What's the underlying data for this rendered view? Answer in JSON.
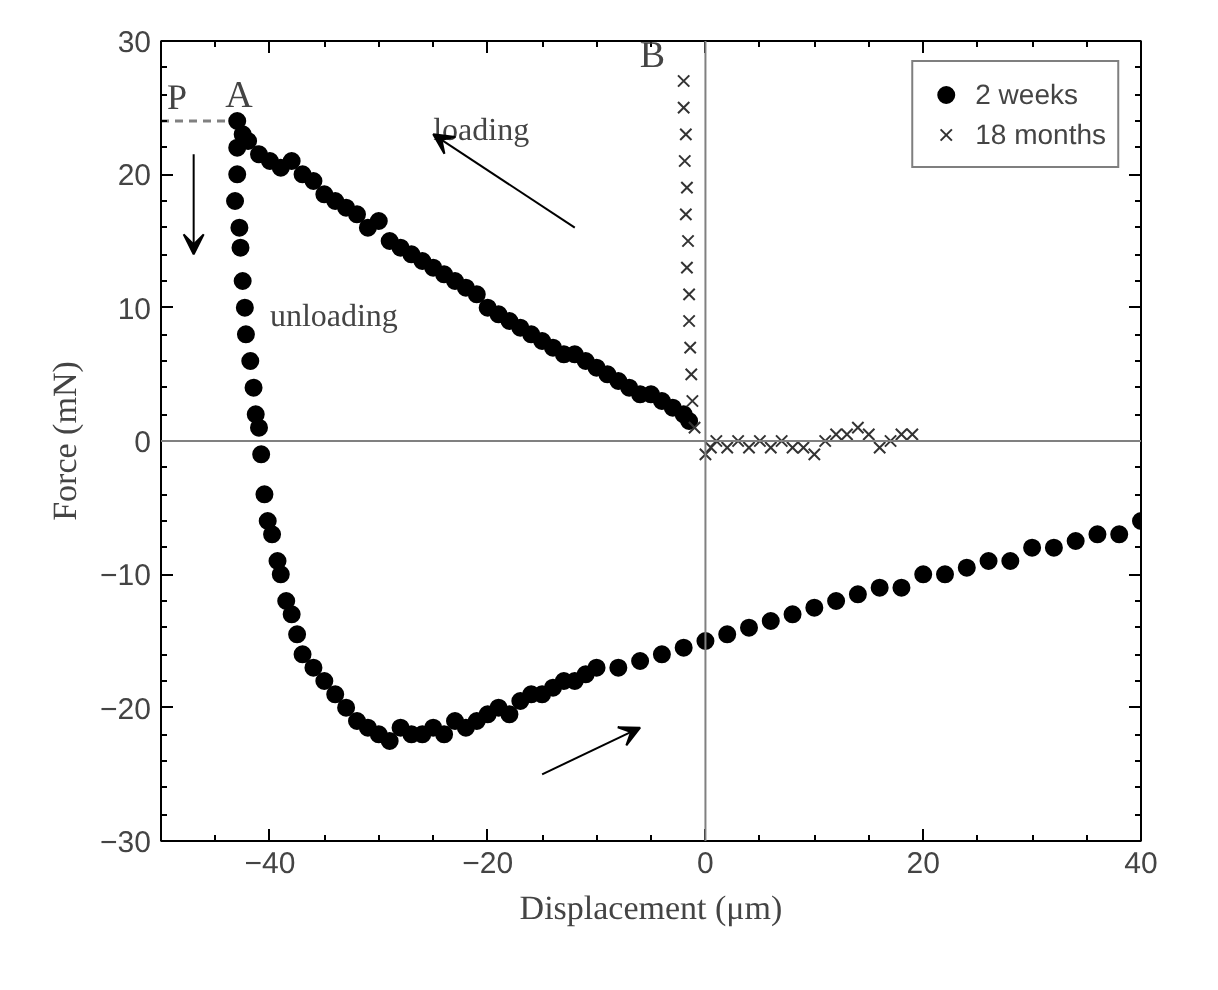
{
  "chart_data": {
    "type": "scatter",
    "xlabel": "Displacement (μm)",
    "ylabel": "Force (mN)",
    "xlim": [
      -50,
      40
    ],
    "ylim": [
      -30,
      30
    ],
    "xticks": [
      -40,
      -20,
      0,
      20,
      40
    ],
    "yticks": [
      -30,
      -20,
      -10,
      0,
      10,
      20,
      30
    ],
    "grid": false,
    "legend": "top right",
    "series": [
      {
        "name": "2 weeks",
        "color": "#000000",
        "marker": "circle",
        "x": [
          -43,
          -42.5,
          -42,
          -41,
          -40,
          -39,
          -38,
          -37,
          -36,
          -35,
          -34,
          -33,
          -32,
          -31,
          -30,
          -29,
          -28,
          -27,
          -26,
          -25,
          -24,
          -23,
          -22,
          -21,
          -20,
          -19,
          -18,
          -17,
          -16,
          -15,
          -14,
          -13,
          -12,
          -11,
          -10,
          -9,
          -8,
          -7,
          -6,
          -5,
          -4,
          -3,
          -2,
          -1.5,
          -43,
          -43,
          -43.2,
          -42.8,
          -42.7,
          -42.5,
          -42.3,
          -42.2,
          -41.8,
          -41.5,
          -41.3,
          -41,
          -40.8,
          -40.5,
          -40.2,
          -39.8,
          -39.3,
          -39,
          -38.5,
          -38,
          -37.5,
          -37,
          -36,
          -35,
          -34,
          -33,
          -32,
          -31,
          -30,
          -29,
          -28,
          -27,
          -26,
          -25,
          -24,
          -23,
          -22,
          -21,
          -20,
          -19,
          -18,
          -17,
          -16,
          -15,
          -14,
          -13,
          -12,
          -11,
          -10,
          -8,
          -6,
          -4,
          -2,
          0,
          2,
          4,
          6,
          8,
          10,
          12,
          14,
          16,
          18,
          20,
          22,
          24,
          26,
          28,
          30,
          32,
          34,
          36,
          38,
          40
        ],
        "values": [
          24,
          23,
          22.5,
          21.5,
          21,
          20.5,
          21,
          20,
          19.5,
          18.5,
          18,
          17.5,
          17,
          16,
          16.5,
          15,
          14.5,
          14,
          13.5,
          13,
          12.5,
          12,
          11.5,
          11,
          10,
          9.5,
          9,
          8.5,
          8,
          7.5,
          7,
          6.5,
          6.5,
          6,
          5.5,
          5,
          4.5,
          4,
          3.5,
          3.5,
          3,
          2.5,
          2,
          1.5,
          22,
          20,
          18,
          16,
          14.5,
          12,
          10,
          8,
          6,
          4,
          2,
          1,
          -1,
          -4,
          -6,
          -7,
          -9,
          -10,
          -12,
          -13,
          -14.5,
          -16,
          -17,
          -18,
          -19,
          -20,
          -21,
          -21.5,
          -22,
          -22.5,
          -21.5,
          -22,
          -22,
          -21.5,
          -22,
          -21,
          -21.5,
          -21,
          -20.5,
          -20,
          -20.5,
          -19.5,
          -19,
          -19,
          -18.5,
          -18,
          -18,
          -17.5,
          -17,
          -17,
          -16.5,
          -16,
          -15.5,
          -15,
          -14.5,
          -14,
          -13.5,
          -13,
          -12.5,
          -12,
          -11.5,
          -11,
          -11,
          -10,
          -10,
          -9.5,
          -9,
          -9,
          -8,
          -8,
          -7.5,
          -7,
          -7,
          -6
        ]
      },
      {
        "name": "18 months",
        "color": "#333333",
        "marker": "cross",
        "x": [
          -2,
          -2,
          -1.8,
          -1.9,
          -1.7,
          -1.8,
          -1.6,
          -1.7,
          -1.5,
          -1.5,
          -1.4,
          -1.3,
          -1.2,
          -1,
          0,
          0.5,
          1,
          2,
          3,
          4,
          5,
          6,
          7,
          8,
          9,
          10,
          11,
          12,
          13,
          14,
          15,
          16,
          17,
          18,
          19
        ],
        "values": [
          27,
          25,
          23,
          21,
          19,
          17,
          15,
          13,
          11,
          9,
          7,
          5,
          3,
          1,
          -1,
          -0.5,
          0,
          -0.5,
          0,
          -0.5,
          0,
          -0.5,
          0,
          -0.5,
          -0.5,
          -1,
          0,
          0.5,
          0.5,
          1,
          0.5,
          -0.5,
          0,
          0.5,
          0.5
        ]
      }
    ],
    "ref_lines": [
      {
        "axis": "x",
        "value": 0,
        "color": "#808080"
      },
      {
        "axis": "y",
        "value": 0,
        "color": "#808080"
      },
      {
        "axis": "y",
        "value": 24,
        "label": "P",
        "color": "#808080",
        "line_style": "dashed"
      }
    ],
    "annotations": [
      {
        "text": "A",
        "x": -43,
        "y": 24
      },
      {
        "text": "B",
        "x": -2,
        "y": 27
      },
      "loading",
      "unloading"
    ]
  }
}
